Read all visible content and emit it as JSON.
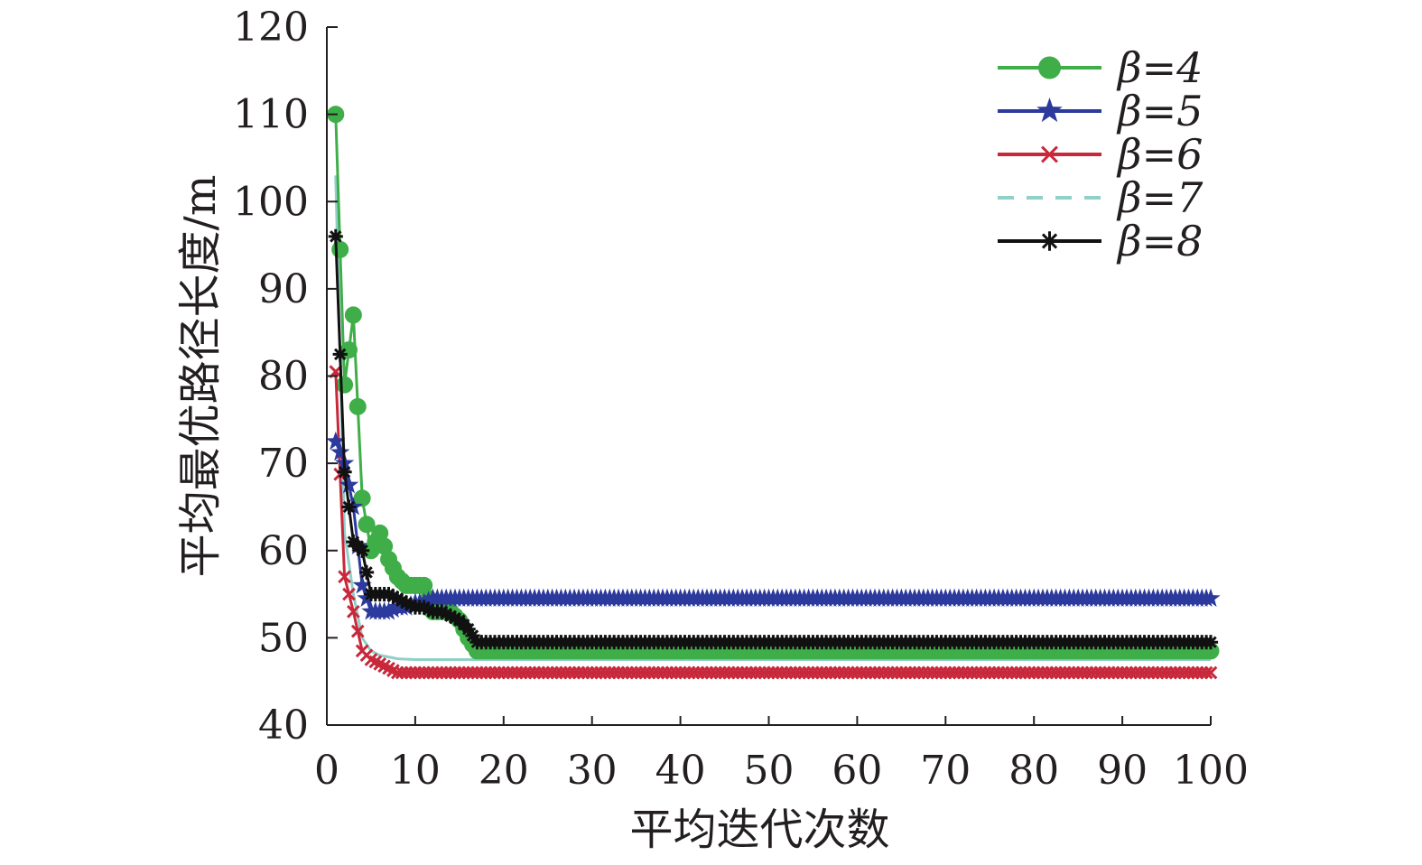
{
  "chart_data": {
    "type": "line",
    "title": "",
    "xlabel": "平均迭代次数",
    "ylabel": "平均最优路径长度/m",
    "xlim": [
      0,
      100
    ],
    "ylim": [
      40,
      120
    ],
    "xticks": [
      0,
      10,
      20,
      30,
      40,
      50,
      60,
      70,
      80,
      90,
      100
    ],
    "yticks": [
      40,
      50,
      60,
      70,
      80,
      90,
      100,
      110,
      120
    ],
    "legend_position": "top-right",
    "grid": false,
    "series": [
      {
        "name": "β=4",
        "color": "#3fae49",
        "marker": "circle",
        "points": [
          [
            1,
            110
          ],
          [
            2,
            79
          ],
          [
            3,
            87
          ],
          [
            4,
            66
          ],
          [
            5,
            60
          ],
          [
            6,
            62
          ],
          [
            7,
            59
          ],
          [
            8,
            57
          ],
          [
            9,
            56
          ],
          [
            10,
            56
          ],
          [
            11,
            56
          ],
          [
            12,
            53
          ],
          [
            13,
            53
          ],
          [
            14,
            53
          ],
          [
            15,
            52
          ],
          [
            16,
            50
          ],
          [
            17,
            48.5
          ],
          [
            20,
            48.5
          ],
          [
            100,
            48.5
          ]
        ]
      },
      {
        "name": "β=5",
        "color": "#2b3a9c",
        "marker": "star",
        "points": [
          [
            1,
            72.5
          ],
          [
            2,
            70
          ],
          [
            3,
            65
          ],
          [
            4,
            56
          ],
          [
            5,
            53
          ],
          [
            6,
            53
          ],
          [
            7,
            53
          ],
          [
            8,
            53.5
          ],
          [
            9,
            53.5
          ],
          [
            10,
            54
          ],
          [
            11,
            54
          ],
          [
            12,
            54.5
          ],
          [
            13,
            54.5
          ],
          [
            100,
            54.5
          ]
        ]
      },
      {
        "name": "β=6",
        "color": "#c8283a",
        "marker": "x",
        "points": [
          [
            1,
            80.5
          ],
          [
            2,
            57
          ],
          [
            3,
            53
          ],
          [
            4,
            48.5
          ],
          [
            5,
            47.5
          ],
          [
            6,
            47
          ],
          [
            7,
            46.5
          ],
          [
            8,
            46
          ],
          [
            9,
            46
          ],
          [
            10,
            46
          ],
          [
            100,
            46
          ]
        ]
      },
      {
        "name": "β=7",
        "color": "#8fd0c8",
        "marker": "none",
        "points": [
          [
            1,
            103
          ],
          [
            2,
            62
          ],
          [
            3,
            55
          ],
          [
            4,
            50
          ],
          [
            5,
            48.5
          ],
          [
            6,
            48
          ],
          [
            7,
            47.8
          ],
          [
            8,
            47.6
          ],
          [
            10,
            47.5
          ],
          [
            100,
            47.5
          ]
        ]
      },
      {
        "name": "β=8",
        "color": "#111111",
        "marker": "asterisk",
        "points": [
          [
            1,
            96
          ],
          [
            2,
            69
          ],
          [
            3,
            61
          ],
          [
            4,
            60
          ],
          [
            5,
            55
          ],
          [
            6,
            55
          ],
          [
            7,
            55
          ],
          [
            8,
            54.5
          ],
          [
            9,
            54
          ],
          [
            10,
            53.5
          ],
          [
            11,
            53.5
          ],
          [
            12,
            53
          ],
          [
            13,
            53
          ],
          [
            14,
            52.5
          ],
          [
            15,
            52
          ],
          [
            16,
            51
          ],
          [
            17,
            49.5
          ],
          [
            100,
            49.5
          ]
        ]
      }
    ]
  }
}
